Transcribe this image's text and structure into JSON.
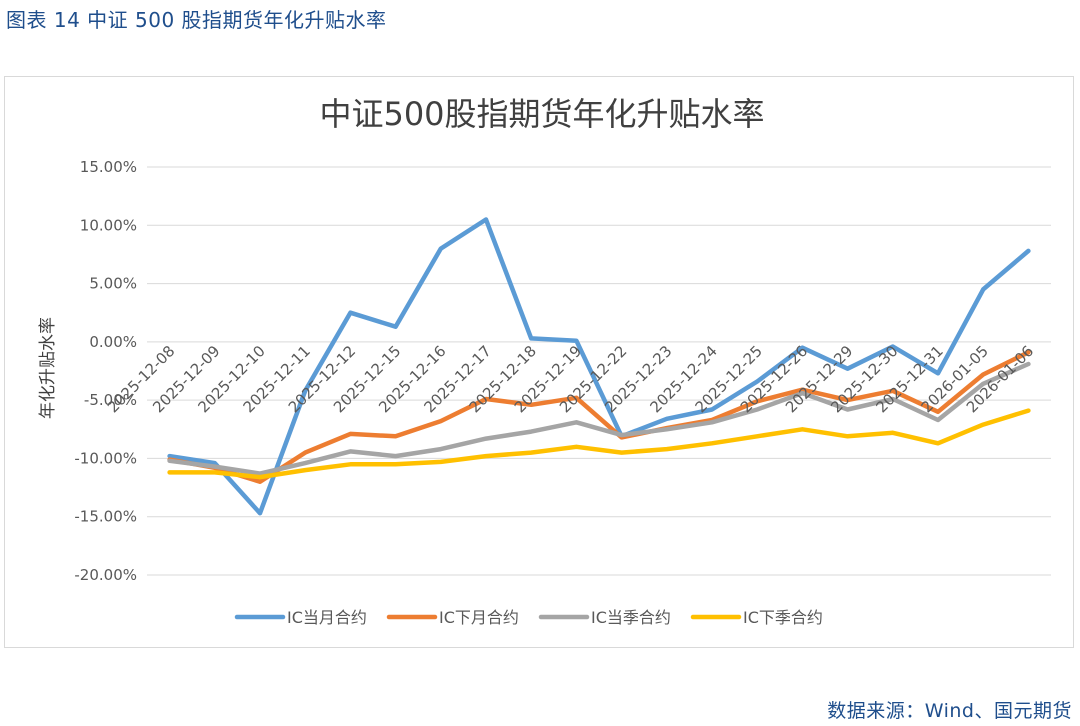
{
  "figure_caption": "图表 14  中证 500 股指期货年化升贴水率",
  "source": "数据来源：Wind、国元期货",
  "colors": {
    "background": "#ffffff",
    "caption": "#1f4e8c",
    "grid": "#d9d9d9",
    "axis_text": "#595959",
    "title": "#404040"
  },
  "chart_data": {
    "type": "line",
    "title": "中证500股指期货年化升贴水率",
    "xlabel": "",
    "ylabel": "年化升贴水率",
    "ylim": [
      -0.2,
      0.15
    ],
    "yticks": [
      0.15,
      0.1,
      0.05,
      0.0,
      -0.05,
      -0.1,
      -0.15,
      -0.2
    ],
    "ytick_labels": [
      "15.00%",
      "10.00%",
      "5.00%",
      "0.00%",
      "-5.00%",
      "-10.00%",
      "-15.00%",
      "-20.00%"
    ],
    "grid": true,
    "legend_position": "bottom",
    "categories": [
      "2025-12-08",
      "2025-12-09",
      "2025-12-10",
      "2025-12-11",
      "2025-12-12",
      "2025-12-15",
      "2025-12-16",
      "2025-12-17",
      "2025-12-18",
      "2025-12-19",
      "2025-12-22",
      "2025-12-23",
      "2025-12-24",
      "2025-12-25",
      "2025-12-26",
      "2025-12-29",
      "2025-12-30",
      "2025-12-31",
      "2026-01-05",
      "2026-01-06"
    ],
    "series": [
      {
        "name": "IC当月合约",
        "color": "#5b9bd5",
        "values": [
          -0.098,
          -0.104,
          -0.147,
          -0.042,
          0.025,
          0.013,
          0.08,
          0.105,
          0.003,
          0.001,
          -0.081,
          -0.066,
          -0.058,
          -0.034,
          -0.005,
          -0.023,
          -0.004,
          -0.027,
          0.045,
          0.078
        ]
      },
      {
        "name": "IC下月合约",
        "color": "#ed7d31",
        "values": [
          -0.101,
          -0.108,
          -0.12,
          -0.095,
          -0.079,
          -0.081,
          -0.068,
          -0.049,
          -0.054,
          -0.048,
          -0.082,
          -0.074,
          -0.067,
          -0.051,
          -0.041,
          -0.05,
          -0.042,
          -0.06,
          -0.028,
          -0.009
        ]
      },
      {
        "name": "IC当季合约",
        "color": "#a5a5a5",
        "values": [
          -0.102,
          -0.107,
          -0.113,
          -0.104,
          -0.094,
          -0.098,
          -0.092,
          -0.083,
          -0.077,
          -0.069,
          -0.08,
          -0.075,
          -0.069,
          -0.058,
          -0.044,
          -0.058,
          -0.049,
          -0.067,
          -0.036,
          -0.019
        ]
      },
      {
        "name": "IC下季合约",
        "color": "#ffc000",
        "values": [
          -0.112,
          -0.112,
          -0.116,
          -0.11,
          -0.105,
          -0.105,
          -0.103,
          -0.098,
          -0.095,
          -0.09,
          -0.095,
          -0.092,
          -0.087,
          -0.081,
          -0.075,
          -0.081,
          -0.078,
          -0.087,
          -0.071,
          -0.059
        ]
      }
    ]
  }
}
